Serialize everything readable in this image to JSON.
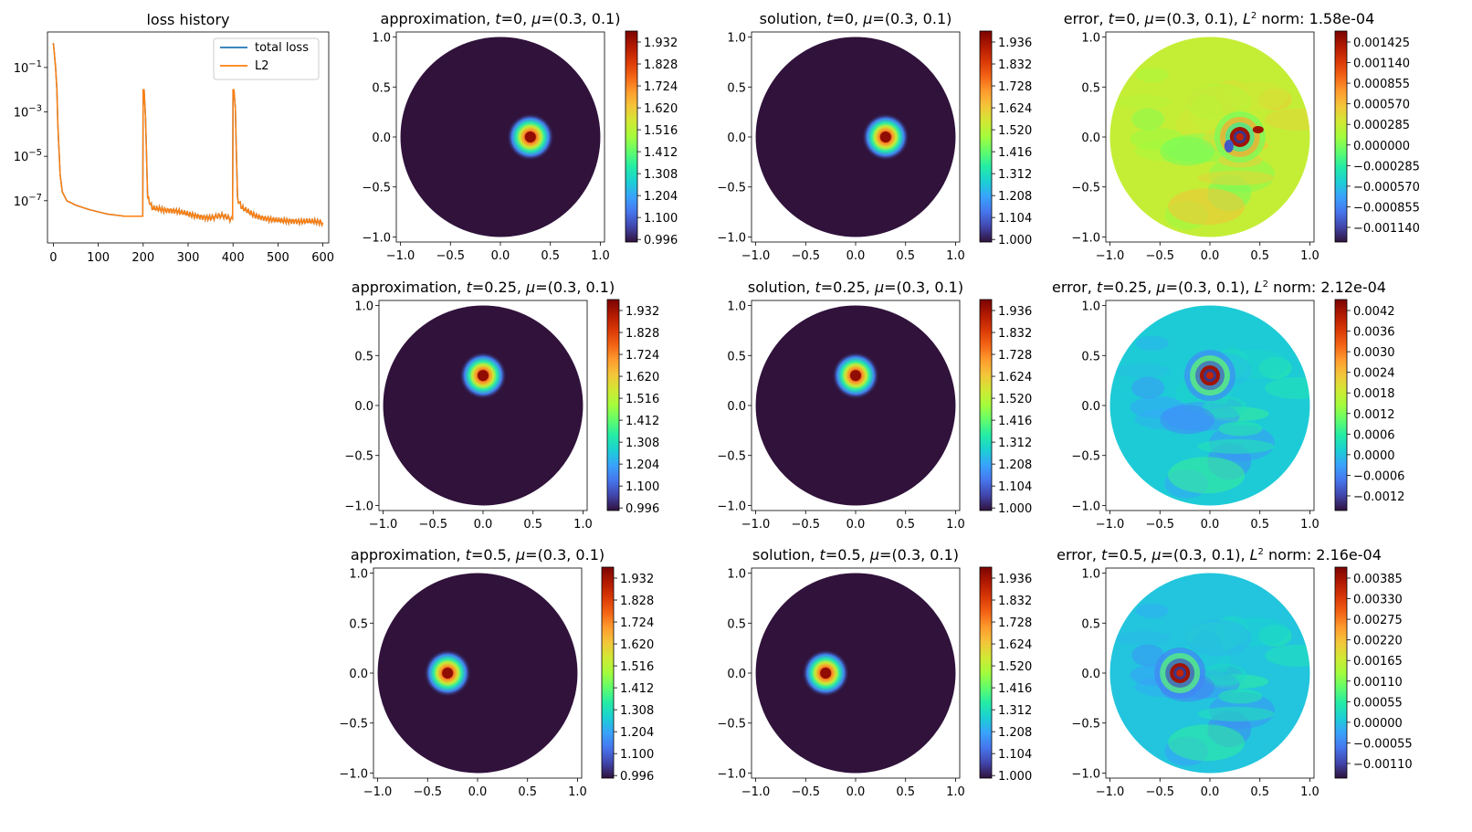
{
  "colors": {
    "total_loss": "#1f77b4",
    "l2": "#ff7f0e",
    "turbo": [
      "#30123b",
      "#4145ab",
      "#4675ed",
      "#39a2fc",
      "#1bcfd4",
      "#24eca6",
      "#61fc6c",
      "#a4fc3b",
      "#d1e834",
      "#f3c63a",
      "#fe9b2d",
      "#f36315",
      "#d93806",
      "#b11901",
      "#7a0402"
    ]
  },
  "chart_data": [
    {
      "type": "line",
      "panel": "loss",
      "title": "loss history",
      "yscale": "log",
      "xlim": [
        -13,
        613
      ],
      "ylim_exp": [
        -8.9,
        0.6
      ],
      "xticks": [
        "0",
        "100",
        "200",
        "300",
        "400",
        "500",
        "600"
      ],
      "xtick_values": [
        0,
        100,
        200,
        300,
        400,
        500,
        600
      ],
      "yticks": [
        "10<sup>-1</sup>",
        "10<sup>-3</sup>",
        "10<sup>-5</sup>",
        "10<sup>-7</sup>"
      ],
      "ytick_labels": [
        {
          "base": "10",
          "exp": "−1"
        },
        {
          "base": "10",
          "exp": "−3"
        },
        {
          "base": "10",
          "exp": "−5"
        },
        {
          "base": "10",
          "exp": "−7"
        }
      ],
      "ytick_exps": [
        -1,
        -3,
        -5,
        -7
      ],
      "series": [
        {
          "name": "total loss",
          "color": "#1f77b4",
          "x": [
            0,
            2,
            5,
            8,
            10,
            15,
            20,
            30,
            50,
            80,
            120,
            160,
            199,
            200,
            202,
            205,
            210,
            220,
            250,
            300,
            350,
            399,
            400,
            402,
            405,
            410,
            420,
            450,
            500,
            550,
            600
          ],
          "log10_y": [
            0.1,
            -0.3,
            -1.0,
            -2.0,
            -3.5,
            -5.8,
            -6.6,
            -7.0,
            -7.2,
            -7.4,
            -7.6,
            -7.7,
            -7.7,
            -2.0,
            -2.0,
            -3.2,
            -6.8,
            -7.3,
            -7.5,
            -7.6,
            -7.7,
            -7.8,
            -2.0,
            -2.0,
            -2.8,
            -7.0,
            -7.4,
            -7.7,
            -7.8,
            -8.0,
            -8.0
          ]
        },
        {
          "name": "L2",
          "color": "#ff7f0e",
          "x": [
            0,
            2,
            5,
            8,
            10,
            15,
            20,
            30,
            50,
            80,
            120,
            160,
            199,
            200,
            202,
            205,
            210,
            220,
            250,
            300,
            350,
            399,
            400,
            402,
            405,
            410,
            420,
            450,
            500,
            550,
            600
          ],
          "log10_y": [
            0.1,
            -0.3,
            -1.0,
            -2.0,
            -3.5,
            -5.8,
            -6.6,
            -7.0,
            -7.2,
            -7.4,
            -7.6,
            -7.7,
            -7.7,
            -2.0,
            -2.0,
            -3.2,
            -6.8,
            -7.3,
            -7.5,
            -7.6,
            -7.7,
            -7.8,
            -2.0,
            -2.0,
            -2.8,
            -7.0,
            -7.4,
            -7.7,
            -7.8,
            -8.0,
            -8.0
          ]
        }
      ]
    },
    {
      "type": "heatmap",
      "kind": "approximation",
      "title": "approximation, t=0, μ=(0.3, 0.1)",
      "t": "0",
      "mu": "(0.3, 0.1)",
      "blob_center": [
        0.3,
        0.0
      ],
      "xticks": [
        "−1.0",
        "−0.5",
        "0.0",
        "0.5",
        "1.0"
      ],
      "yticks": [
        "1.0",
        "0.5",
        "0.0",
        "−0.5",
        "−1.0"
      ],
      "colorbar_ticks": [
        "1.932",
        "1.828",
        "1.724",
        "1.620",
        "1.516",
        "1.412",
        "1.308",
        "1.204",
        "1.100",
        "0.996"
      ]
    },
    {
      "type": "heatmap",
      "kind": "solution",
      "title": "solution, t=0, μ=(0.3, 0.1)",
      "t": "0",
      "mu": "(0.3, 0.1)",
      "blob_center": [
        0.3,
        0.0
      ],
      "xticks": [
        "−1.0",
        "−0.5",
        "0.0",
        "0.5",
        "1.0"
      ],
      "yticks": [
        "1.0",
        "0.5",
        "0.0",
        "−0.5",
        "−1.0"
      ],
      "colorbar_ticks": [
        "1.936",
        "1.832",
        "1.728",
        "1.624",
        "1.520",
        "1.416",
        "1.312",
        "1.208",
        "1.104",
        "1.000"
      ]
    },
    {
      "type": "heatmap",
      "kind": "error",
      "title": "error, t=0, μ=(0.3, 0.1), L2 norm: 1.58e-04",
      "t": "0",
      "mu": "(0.3, 0.1)",
      "norm": "1.58e-04",
      "blob_center": [
        0.3,
        0.0
      ],
      "background_level": 0.55,
      "xticks": [
        "−1.0",
        "−0.5",
        "0.0",
        "0.5",
        "1.0"
      ],
      "yticks": [
        "1.0",
        "0.5",
        "0.0",
        "−0.5",
        "−1.0"
      ],
      "colorbar_ticks": [
        "0.001425",
        "0.001140",
        "0.000855",
        "0.000570",
        "0.000285",
        "0.000000",
        "−0.000285",
        "−0.000570",
        "−0.000855",
        "−0.001140"
      ]
    },
    {
      "type": "heatmap",
      "kind": "approximation",
      "title": "approximation, t=0.25, μ=(0.3, 0.1)",
      "t": "0.25",
      "mu": "(0.3, 0.1)",
      "blob_center": [
        0.0,
        0.3
      ],
      "xticks": [
        "−1.0",
        "−0.5",
        "0.0",
        "0.5",
        "1.0"
      ],
      "yticks": [
        "1.0",
        "0.5",
        "0.0",
        "−0.5",
        "−1.0"
      ],
      "colorbar_ticks": [
        "1.932",
        "1.828",
        "1.724",
        "1.620",
        "1.516",
        "1.412",
        "1.308",
        "1.204",
        "1.100",
        "0.996"
      ]
    },
    {
      "type": "heatmap",
      "kind": "solution",
      "title": "solution, t=0.25, μ=(0.3, 0.1)",
      "t": "0.25",
      "mu": "(0.3, 0.1)",
      "blob_center": [
        0.0,
        0.3
      ],
      "xticks": [
        "−1.0",
        "−0.5",
        "0.0",
        "0.5",
        "1.0"
      ],
      "yticks": [
        "1.0",
        "0.5",
        "0.0",
        "−0.5",
        "−1.0"
      ],
      "colorbar_ticks": [
        "1.936",
        "1.832",
        "1.728",
        "1.624",
        "1.520",
        "1.416",
        "1.312",
        "1.208",
        "1.104",
        "1.000"
      ]
    },
    {
      "type": "heatmap",
      "kind": "error",
      "title": "error, t=0.25, μ=(0.3, 0.1), L2 norm: 2.12e-04",
      "t": "0.25",
      "mu": "(0.3, 0.1)",
      "norm": "2.12e-04",
      "blob_center": [
        0.0,
        0.3
      ],
      "background_level": 0.28,
      "xticks": [
        "−1.0",
        "−0.5",
        "0.0",
        "0.5",
        "1.0"
      ],
      "yticks": [
        "1.0",
        "0.5",
        "0.0",
        "−0.5",
        "−1.0"
      ],
      "colorbar_ticks": [
        "0.0042",
        "0.0036",
        "0.0030",
        "0.0024",
        "0.0018",
        "0.0012",
        "0.0006",
        "0.0000",
        "−0.0006",
        "−0.0012"
      ]
    },
    {
      "type": "heatmap",
      "kind": "approximation",
      "title": "approximation, t=0.5, μ=(0.3, 0.1)",
      "t": "0.5",
      "mu": "(0.3, 0.1)",
      "blob_center": [
        -0.3,
        0.0
      ],
      "xticks": [
        "−1.0",
        "−0.5",
        "0.0",
        "0.5",
        "1.0"
      ],
      "yticks": [
        "1.0",
        "0.5",
        "0.0",
        "−0.5",
        "−1.0"
      ],
      "colorbar_ticks": [
        "1.932",
        "1.828",
        "1.724",
        "1.620",
        "1.516",
        "1.412",
        "1.308",
        "1.204",
        "1.100",
        "0.996"
      ]
    },
    {
      "type": "heatmap",
      "kind": "solution",
      "title": "solution, t=0.5, μ=(0.3, 0.1)",
      "t": "0.5",
      "mu": "(0.3, 0.1)",
      "blob_center": [
        -0.3,
        0.0
      ],
      "xticks": [
        "−1.0",
        "−0.5",
        "0.0",
        "0.5",
        "1.0"
      ],
      "yticks": [
        "1.0",
        "0.5",
        "0.0",
        "−0.5",
        "−1.0"
      ],
      "colorbar_ticks": [
        "1.936",
        "1.832",
        "1.728",
        "1.624",
        "1.520",
        "1.416",
        "1.312",
        "1.208",
        "1.104",
        "1.000"
      ]
    },
    {
      "type": "heatmap",
      "kind": "error",
      "title": "error, t=0.5, μ=(0.3, 0.1), L2 norm: 2.16e-04",
      "t": "0.5",
      "mu": "(0.3, 0.1)",
      "norm": "2.16e-04",
      "blob_center": [
        -0.3,
        0.0
      ],
      "background_level": 0.27,
      "xticks": [
        "−1.0",
        "−0.5",
        "0.0",
        "0.5",
        "1.0"
      ],
      "yticks": [
        "1.0",
        "0.5",
        "0.0",
        "−0.5",
        "−1.0"
      ],
      "colorbar_ticks": [
        "0.00385",
        "0.00330",
        "0.00275",
        "0.00220",
        "0.00165",
        "0.00110",
        "0.00055",
        "0.00000",
        "−0.00055",
        "−0.00110"
      ]
    }
  ]
}
